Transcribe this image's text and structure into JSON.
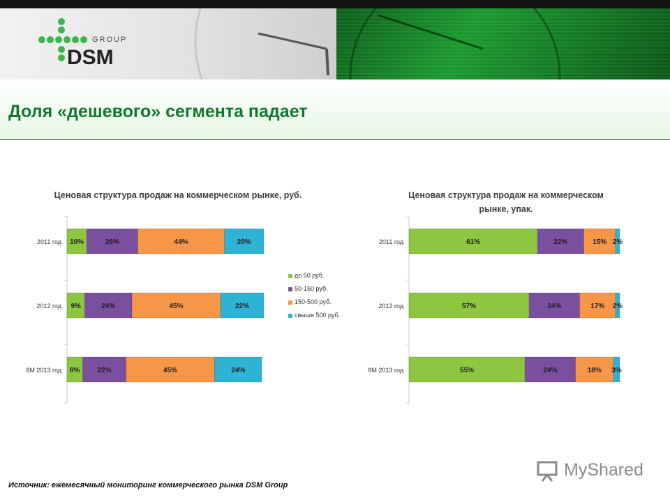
{
  "header": {
    "logo_group": "GROUP",
    "logo_name": "DSM",
    "page_title": "Доля «дешевого» сегмента падает"
  },
  "source": "Источник: ежемесячный мониторинг коммерческого рынка DSM Group",
  "watermark": "MyShared",
  "colors": {
    "green": "#8dc63f",
    "purple": "#7b4fa0",
    "orange": "#f79646",
    "teal": "#2fb3d4",
    "title_green": "#0f7a2a"
  },
  "legend": [
    {
      "label": "до 50 руб.",
      "color": "#8dc63f"
    },
    {
      "label": "50-150 руб.",
      "color": "#7b4fa0"
    },
    {
      "label": "150-500 руб.",
      "color": "#f79646"
    },
    {
      "label": "свыше 500 руб.",
      "color": "#2fb3d4"
    }
  ],
  "chart_data": [
    {
      "type": "bar",
      "stacked": true,
      "orientation": "horizontal",
      "title_lines": [
        "Ценовая структура продаж на коммерческом рынке, руб."
      ],
      "categories": [
        "2011 год",
        "2012 год",
        "8М 2013 год"
      ],
      "series": [
        {
          "name": "до 50 руб.",
          "values": [
            10,
            9,
            8
          ]
        },
        {
          "name": "50-150 руб.",
          "values": [
            26,
            24,
            22
          ]
        },
        {
          "name": "150-500 руб.",
          "values": [
            44,
            45,
            45
          ]
        },
        {
          "name": "свыше 500 руб.",
          "values": [
            20,
            22,
            24
          ]
        }
      ],
      "value_suffix": "%",
      "xlim": [
        0,
        100
      ]
    },
    {
      "type": "bar",
      "stacked": true,
      "orientation": "horizontal",
      "title_lines": [
        "Ценовая структура продаж на коммерческом",
        "рынке, упак."
      ],
      "categories": [
        "2011 год",
        "2012 год",
        "8М 2013 год"
      ],
      "series": [
        {
          "name": "до 50 руб.",
          "values": [
            61,
            57,
            55
          ]
        },
        {
          "name": "50-150 руб.",
          "values": [
            22,
            24,
            24
          ]
        },
        {
          "name": "150-500 руб.",
          "values": [
            15,
            17,
            18
          ]
        },
        {
          "name": "свыше 500 руб.",
          "values": [
            2,
            2,
            3
          ]
        }
      ],
      "value_suffix": "%",
      "xlim": [
        0,
        100
      ]
    }
  ]
}
